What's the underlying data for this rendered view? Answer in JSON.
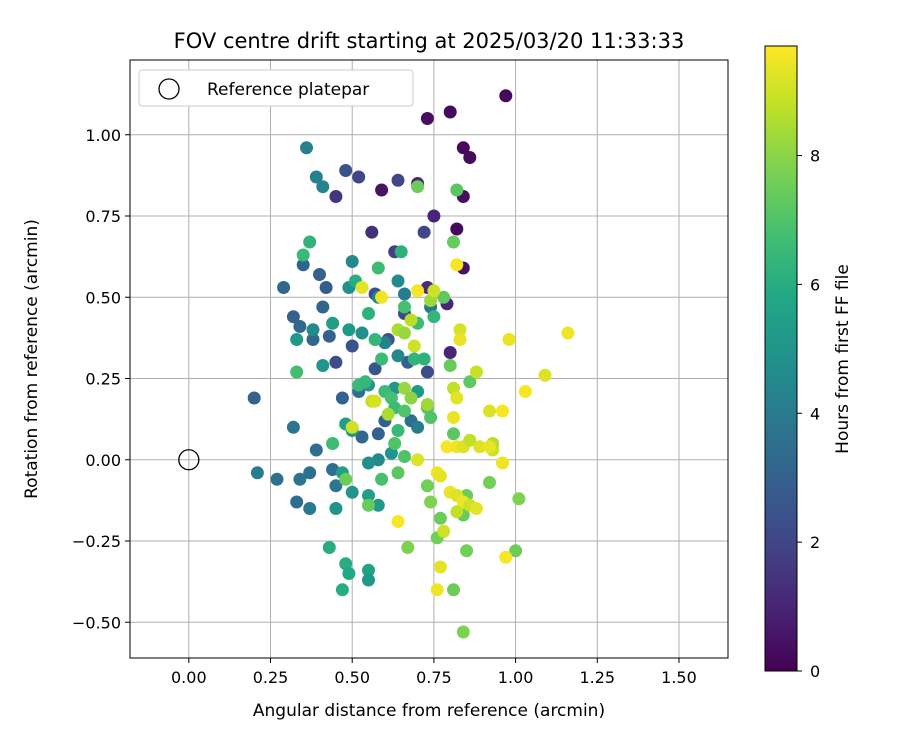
{
  "chart_data": {
    "type": "scatter",
    "title": "FOV centre drift starting at 2025/03/20 11:33:33",
    "xlabel": "Angular distance from reference (arcmin)",
    "ylabel": "Rotation from reference (arcmin)",
    "xlim": [
      -0.18,
      1.65
    ],
    "ylim": [
      -0.61,
      1.23
    ],
    "xticks": [
      "0.00",
      "0.25",
      "0.50",
      "0.75",
      "1.00",
      "1.25",
      "1.50"
    ],
    "yticks": [
      "−0.50",
      "−0.25",
      "0.00",
      "0.25",
      "0.50",
      "0.75",
      "1.00"
    ],
    "grid": true,
    "legend": {
      "position": "top-left",
      "label": "Reference platepar"
    },
    "reference_point": {
      "x": 0.0,
      "y": 0.0
    },
    "colorbar": {
      "label": "Hours from first FF file",
      "min": 0,
      "max": 9.7,
      "ticks": [
        "0",
        "2",
        "4",
        "6",
        "8"
      ],
      "colormap": "viridis"
    },
    "points": [
      {
        "x": 0.97,
        "y": 1.12,
        "h": 0.2
      },
      {
        "x": 0.8,
        "y": 1.07,
        "h": 0.3
      },
      {
        "x": 0.73,
        "y": 1.05,
        "h": 0.4
      },
      {
        "x": 0.84,
        "y": 0.96,
        "h": 0.2
      },
      {
        "x": 0.86,
        "y": 0.93,
        "h": 0.3
      },
      {
        "x": 0.7,
        "y": 0.85,
        "h": 1.0
      },
      {
        "x": 0.59,
        "y": 0.83,
        "h": 0.5
      },
      {
        "x": 0.84,
        "y": 0.81,
        "h": 0.4
      },
      {
        "x": 0.75,
        "y": 0.75,
        "h": 1.0
      },
      {
        "x": 0.82,
        "y": 0.71,
        "h": 0.3
      },
      {
        "x": 0.56,
        "y": 0.7,
        "h": 1.3
      },
      {
        "x": 0.84,
        "y": 0.59,
        "h": 0.5
      },
      {
        "x": 0.73,
        "y": 0.53,
        "h": 1.2
      },
      {
        "x": 0.79,
        "y": 0.48,
        "h": 1.0
      },
      {
        "x": 0.8,
        "y": 0.33,
        "h": 1.0
      },
      {
        "x": 0.45,
        "y": 0.81,
        "h": 1.5
      },
      {
        "x": 0.48,
        "y": 0.89,
        "h": 2.5
      },
      {
        "x": 0.52,
        "y": 0.87,
        "h": 2.0
      },
      {
        "x": 0.64,
        "y": 0.86,
        "h": 2.0
      },
      {
        "x": 0.72,
        "y": 0.7,
        "h": 2.0
      },
      {
        "x": 0.63,
        "y": 0.64,
        "h": 1.8
      },
      {
        "x": 0.57,
        "y": 0.51,
        "h": 2.3
      },
      {
        "x": 0.66,
        "y": 0.45,
        "h": 2.0
      },
      {
        "x": 0.61,
        "y": 0.37,
        "h": 2.5
      },
      {
        "x": 0.67,
        "y": 0.3,
        "h": 3.0
      },
      {
        "x": 0.73,
        "y": 0.27,
        "h": 2.2
      },
      {
        "x": 0.57,
        "y": 0.28,
        "h": 2.6
      },
      {
        "x": 0.45,
        "y": 0.3,
        "h": 2.3
      },
      {
        "x": 0.5,
        "y": 0.35,
        "h": 2.5
      },
      {
        "x": 0.4,
        "y": 0.57,
        "h": 3.0
      },
      {
        "x": 0.42,
        "y": 0.53,
        "h": 2.8
      },
      {
        "x": 0.35,
        "y": 0.6,
        "h": 3.1
      },
      {
        "x": 0.29,
        "y": 0.53,
        "h": 3.2
      },
      {
        "x": 0.32,
        "y": 0.44,
        "h": 3.0
      },
      {
        "x": 0.34,
        "y": 0.41,
        "h": 3.3
      },
      {
        "x": 0.38,
        "y": 0.37,
        "h": 3.2
      },
      {
        "x": 0.43,
        "y": 0.38,
        "h": 3.0
      },
      {
        "x": 0.41,
        "y": 0.47,
        "h": 3.2
      },
      {
        "x": 0.47,
        "y": 0.19,
        "h": 3.0
      },
      {
        "x": 0.52,
        "y": 0.21,
        "h": 3.5
      },
      {
        "x": 0.53,
        "y": 0.07,
        "h": 3.2
      },
      {
        "x": 0.58,
        "y": 0.08,
        "h": 3.0
      },
      {
        "x": 0.6,
        "y": 0.12,
        "h": 3.0
      },
      {
        "x": 0.68,
        "y": 0.12,
        "h": 3.5
      },
      {
        "x": 0.7,
        "y": 0.1,
        "h": 4.0
      },
      {
        "x": 0.2,
        "y": 0.19,
        "h": 3.0
      },
      {
        "x": 0.32,
        "y": 0.1,
        "h": 3.8
      },
      {
        "x": 0.39,
        "y": 0.03,
        "h": 3.5
      },
      {
        "x": 0.21,
        "y": -0.04,
        "h": 4.0
      },
      {
        "x": 0.27,
        "y": -0.06,
        "h": 3.6
      },
      {
        "x": 0.34,
        "y": -0.06,
        "h": 3.8
      },
      {
        "x": 0.37,
        "y": -0.04,
        "h": 3.6
      },
      {
        "x": 0.44,
        "y": -0.03,
        "h": 3.5
      },
      {
        "x": 0.45,
        "y": -0.08,
        "h": 3.8
      },
      {
        "x": 0.33,
        "y": -0.13,
        "h": 3.5
      },
      {
        "x": 0.37,
        "y": -0.15,
        "h": 3.9
      },
      {
        "x": 0.36,
        "y": 0.96,
        "h": 4.2
      },
      {
        "x": 0.39,
        "y": 0.87,
        "h": 4.2
      },
      {
        "x": 0.41,
        "y": 0.84,
        "h": 4.3
      },
      {
        "x": 0.5,
        "y": 0.61,
        "h": 4.5
      },
      {
        "x": 0.64,
        "y": 0.55,
        "h": 4.6
      },
      {
        "x": 0.49,
        "y": 0.53,
        "h": 4.8
      },
      {
        "x": 0.58,
        "y": 0.5,
        "h": 4.2
      },
      {
        "x": 0.66,
        "y": 0.51,
        "h": 4.0
      },
      {
        "x": 0.74,
        "y": 0.47,
        "h": 3.8
      },
      {
        "x": 0.6,
        "y": 0.36,
        "h": 4.2
      },
      {
        "x": 0.64,
        "y": 0.32,
        "h": 4.5
      },
      {
        "x": 0.41,
        "y": 0.29,
        "h": 5.0
      },
      {
        "x": 0.33,
        "y": 0.37,
        "h": 5.2
      },
      {
        "x": 0.38,
        "y": 0.4,
        "h": 4.6
      },
      {
        "x": 0.44,
        "y": 0.42,
        "h": 5.4
      },
      {
        "x": 0.49,
        "y": 0.4,
        "h": 5.2
      },
      {
        "x": 0.53,
        "y": 0.39,
        "h": 4.8
      },
      {
        "x": 0.55,
        "y": 0.23,
        "h": 5.0
      },
      {
        "x": 0.63,
        "y": 0.22,
        "h": 5.0
      },
      {
        "x": 0.7,
        "y": 0.21,
        "h": 5.2
      },
      {
        "x": 0.48,
        "y": 0.11,
        "h": 5.3
      },
      {
        "x": 0.5,
        "y": 0.09,
        "h": 5.0
      },
      {
        "x": 0.58,
        "y": 0.0,
        "h": 4.5
      },
      {
        "x": 0.55,
        "y": -0.01,
        "h": 4.8
      },
      {
        "x": 0.62,
        "y": 0.02,
        "h": 5.0
      },
      {
        "x": 0.47,
        "y": -0.04,
        "h": 5.5
      },
      {
        "x": 0.5,
        "y": -0.1,
        "h": 5.0
      },
      {
        "x": 0.55,
        "y": -0.11,
        "h": 5.4
      },
      {
        "x": 0.58,
        "y": -0.14,
        "h": 5.2
      },
      {
        "x": 0.45,
        "y": -0.15,
        "h": 5.0
      },
      {
        "x": 0.43,
        "y": -0.27,
        "h": 6.0
      },
      {
        "x": 0.48,
        "y": -0.32,
        "h": 6.0
      },
      {
        "x": 0.49,
        "y": -0.35,
        "h": 5.8
      },
      {
        "x": 0.55,
        "y": -0.34,
        "h": 5.6
      },
      {
        "x": 0.55,
        "y": -0.37,
        "h": 5.2
      },
      {
        "x": 0.47,
        "y": -0.4,
        "h": 6.0
      },
      {
        "x": 0.37,
        "y": 0.67,
        "h": 6.3
      },
      {
        "x": 0.35,
        "y": 0.63,
        "h": 6.5
      },
      {
        "x": 0.65,
        "y": 0.64,
        "h": 6.2
      },
      {
        "x": 0.58,
        "y": 0.59,
        "h": 6.6
      },
      {
        "x": 0.51,
        "y": 0.55,
        "h": 6.0
      },
      {
        "x": 0.55,
        "y": 0.45,
        "h": 6.2
      },
      {
        "x": 0.66,
        "y": 0.47,
        "h": 6.8
      },
      {
        "x": 0.7,
        "y": 0.42,
        "h": 6.6
      },
      {
        "x": 0.75,
        "y": 0.44,
        "h": 6.4
      },
      {
        "x": 0.57,
        "y": 0.37,
        "h": 6.4
      },
      {
        "x": 0.59,
        "y": 0.31,
        "h": 6.6
      },
      {
        "x": 0.69,
        "y": 0.31,
        "h": 6.3
      },
      {
        "x": 0.72,
        "y": 0.31,
        "h": 6.2
      },
      {
        "x": 0.33,
        "y": 0.27,
        "h": 6.7
      },
      {
        "x": 0.52,
        "y": 0.23,
        "h": 6.5
      },
      {
        "x": 0.54,
        "y": 0.24,
        "h": 6.4
      },
      {
        "x": 0.6,
        "y": 0.21,
        "h": 6.6
      },
      {
        "x": 0.62,
        "y": 0.19,
        "h": 6.8
      },
      {
        "x": 0.63,
        "y": 0.16,
        "h": 6.6
      },
      {
        "x": 0.66,
        "y": 0.15,
        "h": 7.0
      },
      {
        "x": 0.73,
        "y": 0.16,
        "h": 7.0
      },
      {
        "x": 0.74,
        "y": 0.13,
        "h": 7.0
      },
      {
        "x": 0.64,
        "y": 0.09,
        "h": 6.5
      },
      {
        "x": 0.63,
        "y": 0.05,
        "h": 7.0
      },
      {
        "x": 0.44,
        "y": 0.05,
        "h": 6.6
      },
      {
        "x": 0.64,
        "y": -0.04,
        "h": 7.2
      },
      {
        "x": 0.66,
        "y": 0.01,
        "h": 7.0
      },
      {
        "x": 0.59,
        "y": -0.06,
        "h": 6.8
      },
      {
        "x": 0.48,
        "y": -0.06,
        "h": 7.5
      },
      {
        "x": 0.55,
        "y": -0.14,
        "h": 7.4
      },
      {
        "x": 0.67,
        "y": -0.27,
        "h": 7.8
      },
      {
        "x": 0.76,
        "y": -0.24,
        "h": 7.6
      },
      {
        "x": 0.77,
        "y": -0.18,
        "h": 7.5
      },
      {
        "x": 0.84,
        "y": -0.17,
        "h": 7.4
      },
      {
        "x": 0.85,
        "y": -0.28,
        "h": 7.6
      },
      {
        "x": 0.81,
        "y": -0.4,
        "h": 7.5
      },
      {
        "x": 0.84,
        "y": -0.53,
        "h": 7.8
      },
      {
        "x": 0.74,
        "y": -0.13,
        "h": 7.8
      },
      {
        "x": 0.73,
        "y": -0.08,
        "h": 7.6
      },
      {
        "x": 0.85,
        "y": -0.11,
        "h": 7.5
      },
      {
        "x": 0.81,
        "y": 0.08,
        "h": 7.2
      },
      {
        "x": 0.78,
        "y": 0.5,
        "h": 7.3
      },
      {
        "x": 0.81,
        "y": 0.67,
        "h": 7.4
      },
      {
        "x": 0.82,
        "y": 0.83,
        "h": 7.2
      },
      {
        "x": 0.7,
        "y": 0.84,
        "h": 7.5
      },
      {
        "x": 0.8,
        "y": 0.29,
        "h": 7.4
      },
      {
        "x": 0.86,
        "y": 0.24,
        "h": 7.3
      },
      {
        "x": 0.92,
        "y": -0.07,
        "h": 7.6
      },
      {
        "x": 1.01,
        "y": -0.12,
        "h": 7.8
      },
      {
        "x": 1.0,
        "y": -0.28,
        "h": 7.5
      },
      {
        "x": 0.56,
        "y": 0.18,
        "h": 8.8
      },
      {
        "x": 0.61,
        "y": 0.14,
        "h": 8.5
      },
      {
        "x": 0.66,
        "y": 0.22,
        "h": 8.2
      },
      {
        "x": 0.68,
        "y": 0.19,
        "h": 8.0
      },
      {
        "x": 0.73,
        "y": 0.17,
        "h": 8.3
      },
      {
        "x": 0.74,
        "y": 0.49,
        "h": 8.3
      },
      {
        "x": 0.64,
        "y": 0.4,
        "h": 8.5
      },
      {
        "x": 0.66,
        "y": 0.39,
        "h": 8.2
      },
      {
        "x": 0.68,
        "y": 0.43,
        "h": 8.7
      },
      {
        "x": 0.69,
        "y": 0.35,
        "h": 9.0
      },
      {
        "x": 0.75,
        "y": 0.52,
        "h": 9.0
      },
      {
        "x": 0.7,
        "y": 0.52,
        "h": 9.6
      },
      {
        "x": 0.59,
        "y": 0.5,
        "h": 9.5
      },
      {
        "x": 0.53,
        "y": 0.53,
        "h": 9.3
      },
      {
        "x": 0.81,
        "y": 0.22,
        "h": 8.8
      },
      {
        "x": 0.82,
        "y": 0.19,
        "h": 9.3
      },
      {
        "x": 0.81,
        "y": 0.13,
        "h": 9.4
      },
      {
        "x": 0.79,
        "y": 0.04,
        "h": 9.6
      },
      {
        "x": 0.82,
        "y": 0.04,
        "h": 9.5
      },
      {
        "x": 0.84,
        "y": 0.04,
        "h": 9.2
      },
      {
        "x": 0.86,
        "y": 0.06,
        "h": 8.8
      },
      {
        "x": 0.89,
        "y": 0.04,
        "h": 9.2
      },
      {
        "x": 0.93,
        "y": 0.03,
        "h": 9.0
      },
      {
        "x": 0.93,
        "y": 0.05,
        "h": 8.6
      },
      {
        "x": 0.96,
        "y": -0.01,
        "h": 9.5
      },
      {
        "x": 0.83,
        "y": 0.4,
        "h": 9.1
      },
      {
        "x": 0.83,
        "y": 0.37,
        "h": 9.4
      },
      {
        "x": 0.88,
        "y": 0.27,
        "h": 8.9
      },
      {
        "x": 0.92,
        "y": 0.15,
        "h": 9.2
      },
      {
        "x": 0.96,
        "y": 0.15,
        "h": 9.6
      },
      {
        "x": 0.98,
        "y": 0.37,
        "h": 9.4
      },
      {
        "x": 1.03,
        "y": 0.21,
        "h": 9.6
      },
      {
        "x": 1.09,
        "y": 0.26,
        "h": 9.2
      },
      {
        "x": 1.16,
        "y": 0.39,
        "h": 9.5
      },
      {
        "x": 0.82,
        "y": 0.6,
        "h": 9.6
      },
      {
        "x": 0.76,
        "y": -0.04,
        "h": 9.5
      },
      {
        "x": 0.77,
        "y": -0.05,
        "h": 9.3
      },
      {
        "x": 0.8,
        "y": -0.1,
        "h": 9.4
      },
      {
        "x": 0.82,
        "y": -0.11,
        "h": 9.2
      },
      {
        "x": 0.84,
        "y": -0.13,
        "h": 9.5
      },
      {
        "x": 0.86,
        "y": -0.14,
        "h": 9.0
      },
      {
        "x": 0.88,
        "y": -0.15,
        "h": 9.3
      },
      {
        "x": 0.82,
        "y": -0.16,
        "h": 8.8
      },
      {
        "x": 0.78,
        "y": -0.22,
        "h": 9.0
      },
      {
        "x": 0.77,
        "y": -0.33,
        "h": 9.3
      },
      {
        "x": 0.76,
        "y": -0.4,
        "h": 9.5
      },
      {
        "x": 0.64,
        "y": -0.19,
        "h": 9.6
      },
      {
        "x": 0.7,
        "y": 0.0,
        "h": 9.2
      },
      {
        "x": 0.97,
        "y": -0.3,
        "h": 9.6
      },
      {
        "x": 0.5,
        "y": 0.1,
        "h": 9.0
      },
      {
        "x": 0.57,
        "y": 0.18,
        "h": 9.1
      },
      {
        "x": 0.92,
        "y": 0.04,
        "h": 9.4
      }
    ]
  }
}
